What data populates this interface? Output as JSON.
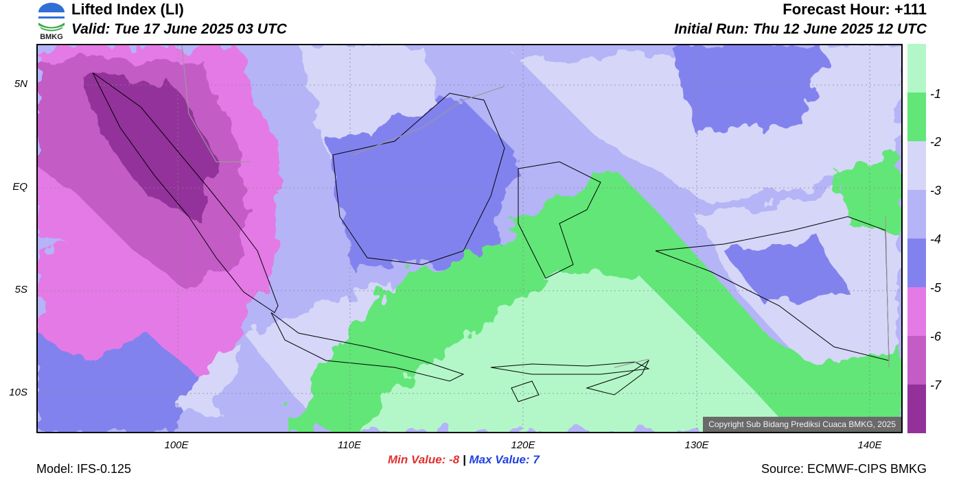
{
  "header": {
    "title": "Lifted Index (LI)",
    "valid": "Valid: Tue 17 June 2025 03 UTC",
    "forecast_hour": "Forecast Hour: +111",
    "initial_run": "Initial Run: Thu 12 June 2025 12 UTC",
    "logo_text": "BMKG"
  },
  "map": {
    "lat_ticks": [
      "5N",
      "EQ",
      "5S",
      "10S"
    ],
    "lon_ticks": [
      "100E",
      "110E",
      "120E",
      "130E",
      "140E"
    ],
    "copyright": "Copyright Sub Bidang Prediksi Cuaca BMKG, 2025",
    "colors": {
      "li_above_-1": "#b3f7c8",
      "li_-2_-1": "#62e678",
      "li_-3_-2": "#d6d6f8",
      "li_-4_-3": "#b4b4f7",
      "li_-5_-4": "#8282ee",
      "li_-6_-5": "#e47ae6",
      "li_-7_-6": "#c45cc6",
      "li_below_-7": "#93309a",
      "coastline": "#000000",
      "borders": "#9a9a9a"
    }
  },
  "colorbar": {
    "labels": [
      "-1",
      "-2",
      "-3",
      "-4",
      "-5",
      "-6",
      "-7"
    ],
    "colors": [
      "#b3f7c8",
      "#62e678",
      "#d6d6f8",
      "#b4b4f7",
      "#8282ee",
      "#e47ae6",
      "#c45cc6",
      "#93309a"
    ]
  },
  "footer": {
    "min_label": "Min Value:",
    "min_value": "-8",
    "separator": "|",
    "max_label": "Max Value:",
    "max_value": "7",
    "model": "Model: IFS-0.125",
    "source": "Source: ECMWF-CIPS BMKG"
  }
}
